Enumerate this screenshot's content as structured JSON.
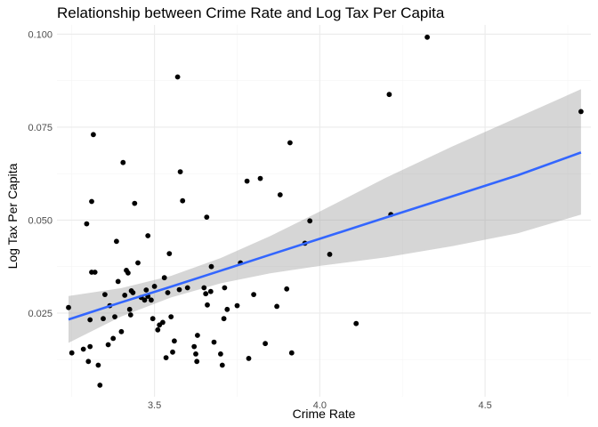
{
  "chart_data": {
    "type": "scatter",
    "title": "Relationship between Crime Rate and Log Tax Per Capita",
    "xlabel": "Crime Rate",
    "ylabel": "Log Tax Per Capita",
    "xlim": [
      3.205,
      4.82
    ],
    "ylim": [
      0.0025,
      0.1025
    ],
    "x_ticks": [
      3.5,
      4.0,
      4.5
    ],
    "x_tick_labels": [
      "3.5",
      "4.0",
      "4.5"
    ],
    "y_ticks": [
      0.025,
      0.05,
      0.075,
      0.1
    ],
    "y_tick_labels": [
      "0.025",
      "0.050",
      "0.075",
      "0.100"
    ],
    "grid": true,
    "legend": "none",
    "colors": {
      "points": "#000000",
      "fit_line": "#3366ff",
      "band": "#999999"
    },
    "points": [
      [
        3.24,
        0.0265
      ],
      [
        3.25,
        0.0143
      ],
      [
        3.285,
        0.0153
      ],
      [
        3.295,
        0.049
      ],
      [
        3.3,
        0.012
      ],
      [
        3.305,
        0.0232
      ],
      [
        3.305,
        0.016
      ],
      [
        3.31,
        0.055
      ],
      [
        3.31,
        0.036
      ],
      [
        3.315,
        0.073
      ],
      [
        3.32,
        0.036
      ],
      [
        3.33,
        0.011
      ],
      [
        3.335,
        0.0056
      ],
      [
        3.345,
        0.0235
      ],
      [
        3.35,
        0.03
      ],
      [
        3.36,
        0.0165
      ],
      [
        3.365,
        0.027
      ],
      [
        3.375,
        0.0182
      ],
      [
        3.38,
        0.024
      ],
      [
        3.385,
        0.0443
      ],
      [
        3.39,
        0.0335
      ],
      [
        3.4,
        0.02
      ],
      [
        3.405,
        0.0655
      ],
      [
        3.41,
        0.0298
      ],
      [
        3.415,
        0.0365
      ],
      [
        3.42,
        0.0358
      ],
      [
        3.425,
        0.026
      ],
      [
        3.428,
        0.0245
      ],
      [
        3.43,
        0.031
      ],
      [
        3.435,
        0.0305
      ],
      [
        3.44,
        0.0545
      ],
      [
        3.45,
        0.0385
      ],
      [
        3.46,
        0.0292
      ],
      [
        3.47,
        0.0285
      ],
      [
        3.475,
        0.0312
      ],
      [
        3.48,
        0.0295
      ],
      [
        3.48,
        0.0458
      ],
      [
        3.49,
        0.0285
      ],
      [
        3.495,
        0.0235
      ],
      [
        3.5,
        0.0322
      ],
      [
        3.51,
        0.0205
      ],
      [
        3.515,
        0.0218
      ],
      [
        3.525,
        0.0225
      ],
      [
        3.53,
        0.0345
      ],
      [
        3.535,
        0.013
      ],
      [
        3.54,
        0.0305
      ],
      [
        3.545,
        0.041
      ],
      [
        3.55,
        0.024
      ],
      [
        3.555,
        0.0145
      ],
      [
        3.56,
        0.0175
      ],
      [
        3.57,
        0.0885
      ],
      [
        3.575,
        0.0313
      ],
      [
        3.578,
        0.063
      ],
      [
        3.585,
        0.0552
      ],
      [
        3.6,
        0.0318
      ],
      [
        3.62,
        0.016
      ],
      [
        3.625,
        0.014
      ],
      [
        3.628,
        0.012
      ],
      [
        3.63,
        0.019
      ],
      [
        3.65,
        0.0318
      ],
      [
        3.655,
        0.0302
      ],
      [
        3.658,
        0.0508
      ],
      [
        3.66,
        0.0272
      ],
      [
        3.67,
        0.0308
      ],
      [
        3.672,
        0.0375
      ],
      [
        3.68,
        0.0172
      ],
      [
        3.7,
        0.014
      ],
      [
        3.705,
        0.011
      ],
      [
        3.71,
        0.0235
      ],
      [
        3.712,
        0.0318
      ],
      [
        3.72,
        0.026
      ],
      [
        3.75,
        0.027
      ],
      [
        3.76,
        0.0385
      ],
      [
        3.78,
        0.0605
      ],
      [
        3.785,
        0.0128
      ],
      [
        3.8,
        0.03
      ],
      [
        3.82,
        0.0612
      ],
      [
        3.835,
        0.0168
      ],
      [
        3.87,
        0.0268
      ],
      [
        3.88,
        0.0568
      ],
      [
        3.9,
        0.0315
      ],
      [
        3.91,
        0.0708
      ],
      [
        3.915,
        0.0143
      ],
      [
        3.955,
        0.0438
      ],
      [
        3.97,
        0.0498
      ],
      [
        4.03,
        0.0408
      ],
      [
        4.11,
        0.0222
      ],
      [
        4.21,
        0.0838
      ],
      [
        4.215,
        0.0515
      ],
      [
        4.325,
        0.0992
      ],
      [
        4.79,
        0.0792
      ]
    ],
    "fit": {
      "x": [
        3.24,
        3.4,
        3.55,
        3.7,
        3.85,
        4.0,
        4.2,
        4.4,
        4.6,
        4.79
      ],
      "y": [
        0.0233,
        0.0279,
        0.0321,
        0.0364,
        0.0407,
        0.045,
        0.0507,
        0.0564,
        0.0621,
        0.0682
      ],
      "lower": [
        0.017,
        0.0241,
        0.0292,
        0.033,
        0.0357,
        0.0377,
        0.04,
        0.043,
        0.0465,
        0.0515
      ],
      "upper": [
        0.0296,
        0.0317,
        0.035,
        0.0398,
        0.0457,
        0.0523,
        0.0614,
        0.0698,
        0.0777,
        0.0852
      ]
    }
  }
}
